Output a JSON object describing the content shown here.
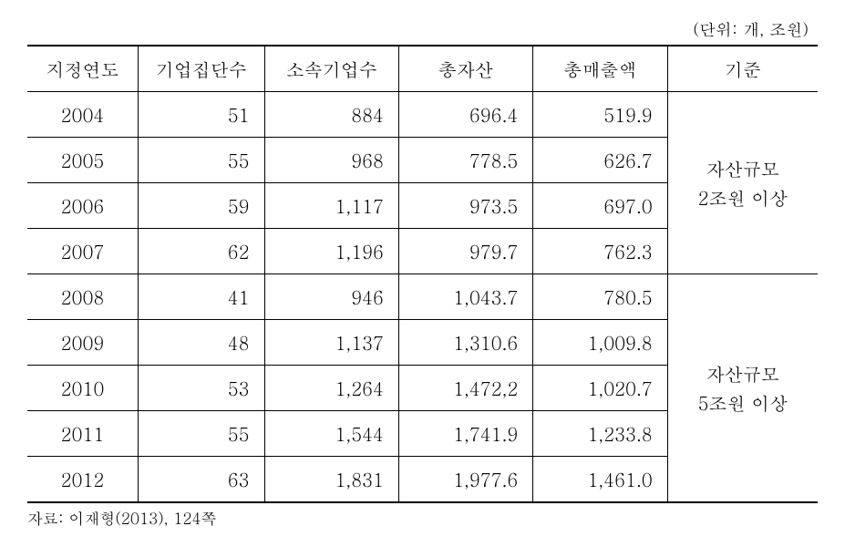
{
  "unit_label": "(단위: 개, 조원)",
  "columns": [
    "지정연도",
    "기업집단수",
    "소속기업수",
    "총자산",
    "총매출액",
    "기준"
  ],
  "rows": [
    {
      "year": "2004",
      "groups": "51",
      "firms": "884",
      "assets": "696.4",
      "sales": "519.9"
    },
    {
      "year": "2005",
      "groups": "55",
      "firms": "968",
      "assets": "778.5",
      "sales": "626.7"
    },
    {
      "year": "2006",
      "groups": "59",
      "firms": "1,117",
      "assets": "973.5",
      "sales": "697.0"
    },
    {
      "year": "2007",
      "groups": "62",
      "firms": "1,196",
      "assets": "979.7",
      "sales": "762.3"
    },
    {
      "year": "2008",
      "groups": "41",
      "firms": "946",
      "assets": "1,043.7",
      "sales": "780.5"
    },
    {
      "year": "2009",
      "groups": "48",
      "firms": "1,137",
      "assets": "1,310.6",
      "sales": "1,009.8"
    },
    {
      "year": "2010",
      "groups": "53",
      "firms": "1,264",
      "assets": "1,472,2",
      "sales": "1,020.7"
    },
    {
      "year": "2011",
      "groups": "55",
      "firms": "1,544",
      "assets": "1,741.9",
      "sales": "1,233.8"
    },
    {
      "year": "2012",
      "groups": "63",
      "firms": "1,831",
      "assets": "1,977.6",
      "sales": "1,461.0"
    }
  ],
  "criteria": {
    "group1": {
      "label_line1": "자산규모",
      "label_line2": "2조원 이상",
      "span": 4
    },
    "group2": {
      "label_line1": "자산규모",
      "label_line2": "5조원 이상",
      "span": 5
    }
  },
  "source": "자료: 이재형(2013), 124쪽",
  "col_widths": [
    "14%",
    "16%",
    "17%",
    "17%",
    "17%",
    "19%"
  ]
}
